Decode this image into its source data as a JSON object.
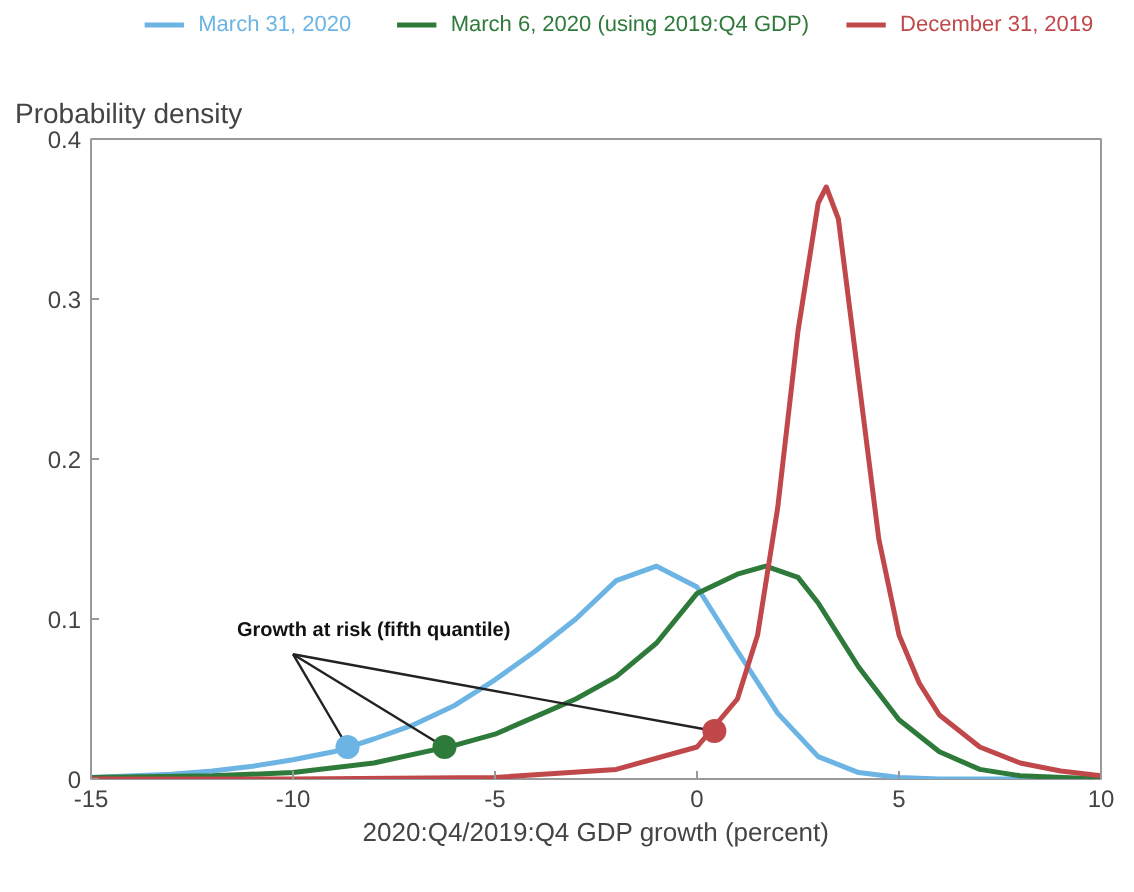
{
  "chart_data": {
    "type": "line",
    "ylabel": "Probability density",
    "xlabel": "2020:Q4/2019:Q4 GDP growth (percent)",
    "xlim": [
      -15,
      10
    ],
    "ylim": [
      0,
      0.4
    ],
    "xticks": [
      -15,
      -10,
      -5,
      0,
      5,
      10
    ],
    "yticks": [
      0,
      0.1,
      0.2,
      0.3,
      0.4
    ],
    "grid": false,
    "legend": "top",
    "marker": "none",
    "line_style": "solid",
    "series": [
      {
        "name": "March 31, 2020",
        "color": "#6cb4e4",
        "x": [
          -15,
          -13,
          -12,
          -11,
          -10,
          -9,
          -8,
          -7,
          -6,
          -5,
          -4,
          -3,
          -2,
          -1,
          0,
          1,
          2,
          3,
          4,
          5,
          6,
          10
        ],
        "values": [
          0.001,
          0.003,
          0.005,
          0.008,
          0.012,
          0.017,
          0.025,
          0.034,
          0.046,
          0.062,
          0.08,
          0.1,
          0.124,
          0.133,
          0.12,
          0.08,
          0.041,
          0.014,
          0.004,
          0.001,
          0,
          0
        ]
      },
      {
        "name": "March 6, 2020 (using 2019:Q4 GDP)",
        "color": "#2e7a3a",
        "x": [
          -15,
          -12,
          -10,
          -8,
          -6,
          -5,
          -4,
          -3,
          -2,
          -1,
          0,
          1,
          1.7,
          2.5,
          3,
          4,
          5,
          6,
          7,
          8,
          10
        ],
        "values": [
          0.001,
          0.002,
          0.004,
          0.01,
          0.021,
          0.028,
          0.039,
          0.05,
          0.064,
          0.085,
          0.116,
          0.128,
          0.133,
          0.126,
          0.11,
          0.07,
          0.037,
          0.017,
          0.006,
          0.002,
          0
        ]
      },
      {
        "name": "December 31, 2019",
        "color": "#c0484a",
        "x": [
          -15,
          -10,
          -5,
          -2,
          0,
          1,
          1.5,
          2,
          2.5,
          3,
          3.2,
          3.5,
          4,
          4.5,
          5,
          5.5,
          6,
          7,
          8,
          9,
          10
        ],
        "values": [
          0,
          0,
          0.001,
          0.006,
          0.02,
          0.05,
          0.09,
          0.17,
          0.28,
          0.36,
          0.37,
          0.35,
          0.25,
          0.15,
          0.09,
          0.06,
          0.04,
          0.02,
          0.01,
          0.005,
          0.002
        ]
      },
      {
        "type": "scatter",
        "marker": "circle",
        "colors": [
          "#6cb4e4",
          "#2e7a3a",
          "#c0484a"
        ],
        "x": [
          -8.65,
          -6.25,
          0.43
        ],
        "values": [
          0.02,
          0.02,
          0.03
        ]
      }
    ],
    "annotations": [
      {
        "text": "Growth at risk (fifth quantile)",
        "x": -8.65,
        "y": 0.02
      }
    ]
  }
}
